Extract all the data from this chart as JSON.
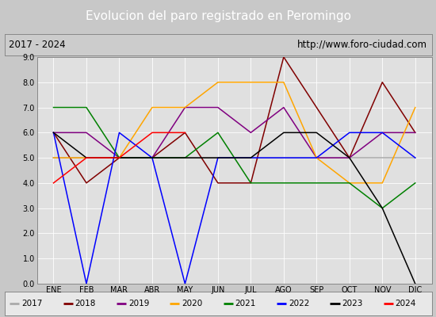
{
  "title": "Evolucion del paro registrado en Peromingo",
  "subtitle_left": "2017 - 2024",
  "subtitle_right": "http://www.foro-ciudad.com",
  "months": [
    "ENE",
    "FEB",
    "MAR",
    "ABR",
    "MAY",
    "JUN",
    "JUL",
    "AGO",
    "SEP",
    "OCT",
    "NOV",
    "DIC"
  ],
  "series": {
    "2017": {
      "color": "#aaaaaa",
      "data": [
        5,
        5,
        5,
        5,
        5,
        5,
        5,
        5,
        5,
        5,
        5,
        5
      ]
    },
    "2018": {
      "color": "#800000",
      "data": [
        6,
        4,
        5,
        5,
        6,
        4,
        4,
        9,
        7,
        5,
        8,
        6
      ]
    },
    "2019": {
      "color": "#800080",
      "data": [
        6,
        6,
        5,
        5,
        7,
        7,
        6,
        7,
        5,
        5,
        6,
        6
      ]
    },
    "2020": {
      "color": "#ffa500",
      "data": [
        5,
        5,
        5,
        7,
        7,
        8,
        8,
        8,
        5,
        4,
        4,
        7
      ]
    },
    "2021": {
      "color": "#008000",
      "data": [
        7,
        7,
        5,
        5,
        5,
        6,
        4,
        4,
        4,
        4,
        3,
        4
      ]
    },
    "2022": {
      "color": "#0000ff",
      "data": [
        6,
        0,
        6,
        5,
        0,
        5,
        5,
        5,
        5,
        6,
        6,
        5
      ]
    },
    "2023": {
      "color": "#000000",
      "data": [
        6,
        5,
        5,
        5,
        5,
        5,
        5,
        6,
        6,
        5,
        3,
        0
      ]
    },
    "2024": {
      "color": "#ff0000",
      "data": [
        4,
        5,
        5,
        6,
        6,
        null,
        null,
        null,
        null,
        null,
        null,
        null
      ]
    }
  },
  "ylim": [
    0.0,
    9.0
  ],
  "yticks": [
    0.0,
    1.0,
    2.0,
    3.0,
    4.0,
    5.0,
    6.0,
    7.0,
    8.0,
    9.0
  ],
  "title_bg_color": "#4c7abf",
  "title_color": "#ffffff",
  "title_fontsize": 11,
  "header_bg_color": "#cccccc",
  "header_border_color": "#888888",
  "plot_bg_color": "#e0e0e0",
  "fig_bg_color": "#c8c8c8",
  "legend_bg_color": "#e8e8e8",
  "legend_border_color": "#888888",
  "grid_color": "#ffffff",
  "tick_fontsize": 7,
  "legend_fontsize": 7.5
}
